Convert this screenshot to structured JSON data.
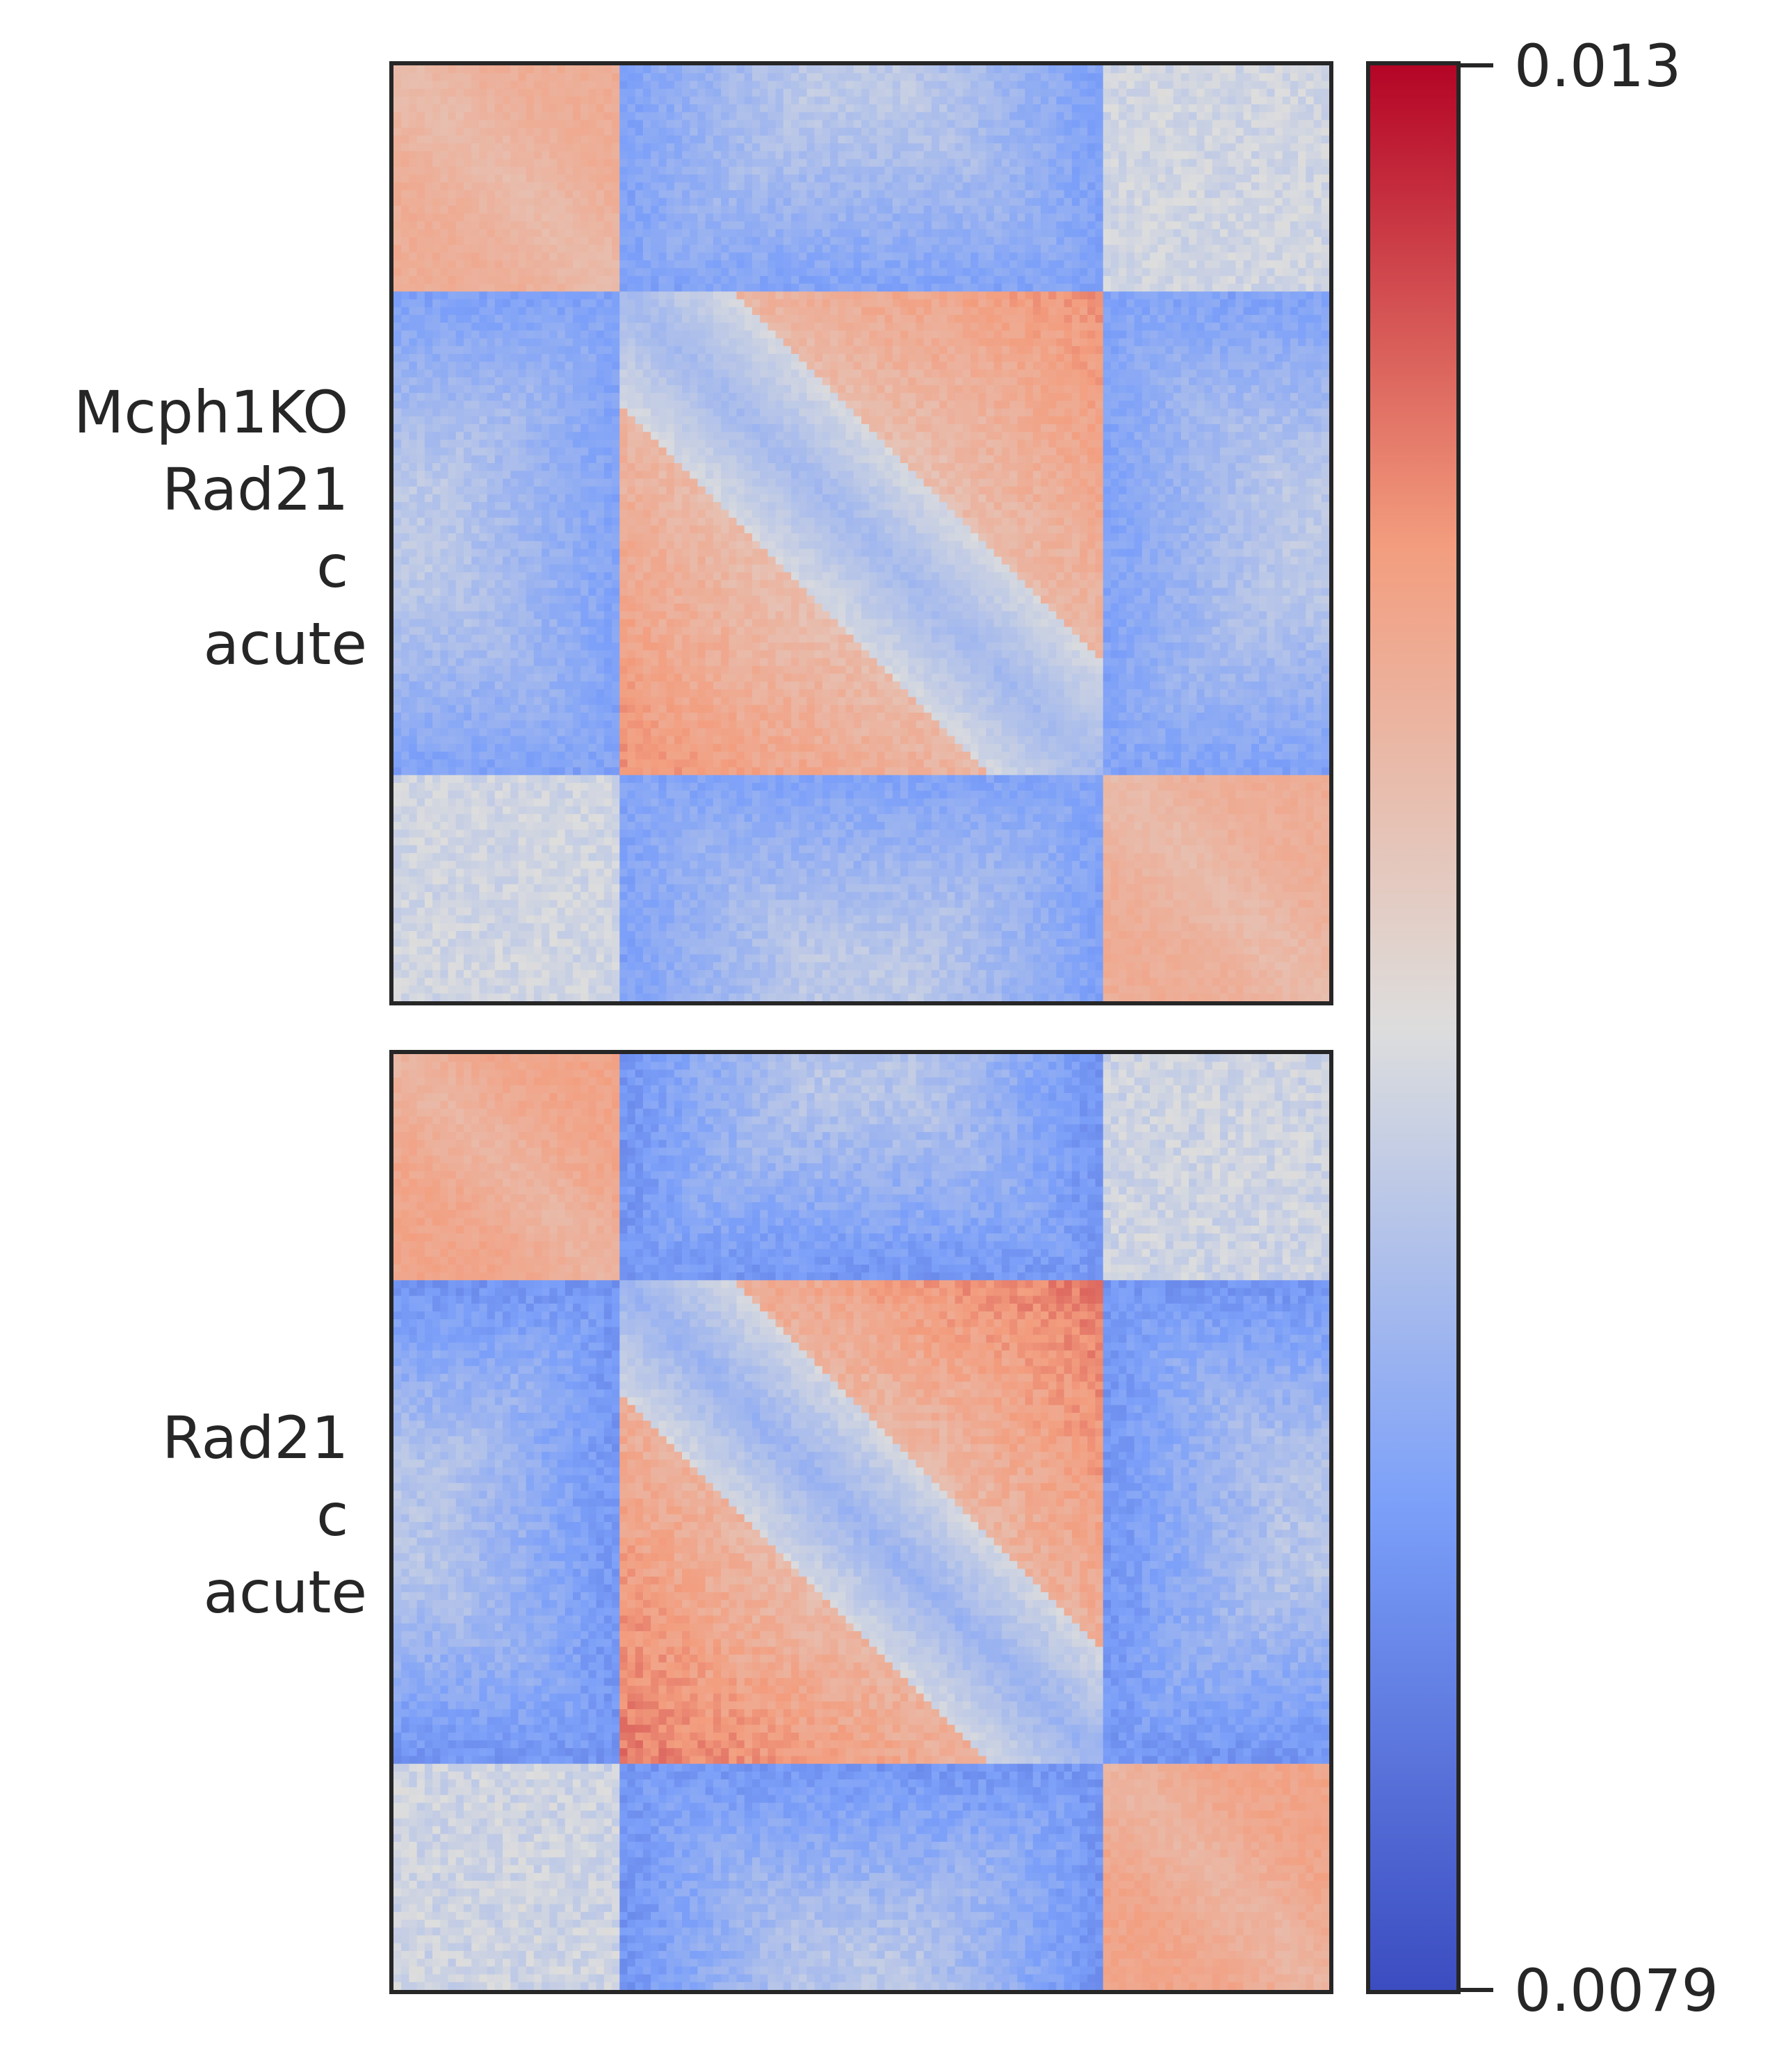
{
  "chart_data": {
    "type": "heatmap",
    "colormap": "coolwarm",
    "color_range": [
      0.0079,
      0.013
    ],
    "colorbar": {
      "max_label": "0.013",
      "min_label": "0.0079"
    },
    "pattern": {
      "description_free_structure": "pileup of Hi-C contact enrichment: corner domains and off-diagonal triangles",
      "grid_bins": 120
    },
    "panels": [
      {
        "label_lines": [
          "Mcph1KO",
          "Rad21",
          "c",
          "acute"
        ],
        "strength": 0.85
      },
      {
        "label_lines": [
          "Rad21",
          "c",
          "acute"
        ],
        "strength": 1.0
      }
    ],
    "grid": false,
    "axis_ticks": false
  }
}
